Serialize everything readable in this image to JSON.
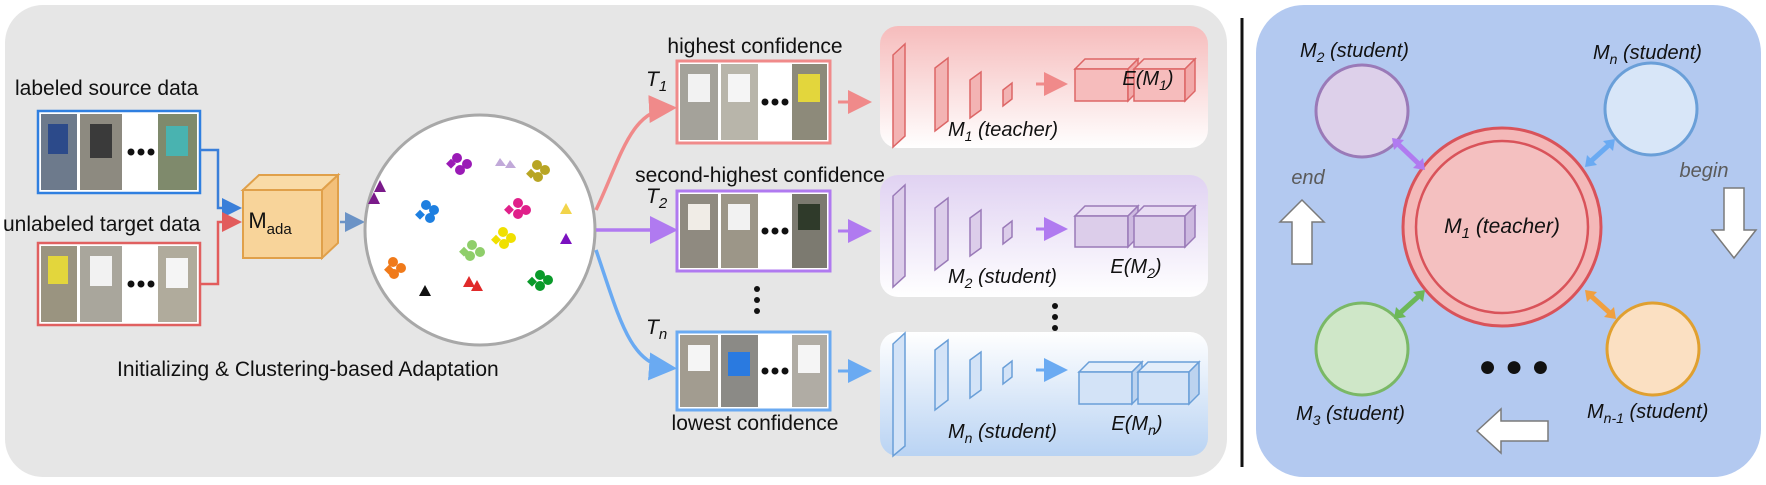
{
  "left_panel": {
    "source_label": "labeled source data",
    "target_label": "unlabeled target data",
    "model_ada": {
      "main": "M",
      "sub": "ada"
    },
    "caption": "Initializing & Clustering-based Adaptation",
    "ellipsis": "•••"
  },
  "branches": {
    "top": {
      "tier_label": "highest confidence",
      "t_main": "T",
      "t_sub": "1",
      "model_main": "M",
      "model_sub": "1",
      "model_role": " (teacher)",
      "emb_pre": "E(M",
      "emb_sub": "1",
      "emb_post": ")"
    },
    "middle": {
      "tier_label": "second-highest confidence",
      "t_main": "T",
      "t_sub": "2",
      "model_main": "M",
      "model_sub": "2",
      "model_role": " (student)",
      "emb_pre": "E(M",
      "emb_sub": "2",
      "emb_post": ")"
    },
    "bottom": {
      "tier_label": "lowest confidence",
      "t_main": "T",
      "t_sub": "n",
      "model_main": "M",
      "model_sub": "n",
      "model_role": " (student)",
      "emb_pre": "E(M",
      "emb_sub": "n",
      "emb_post": ")"
    }
  },
  "right_panel": {
    "teacher": {
      "main": "M",
      "sub": "1",
      "role": " (teacher)"
    },
    "m2": {
      "main": "M",
      "sub": "2",
      "role": " (student)"
    },
    "mn": {
      "main": "M",
      "sub": "n",
      "role": " (student)"
    },
    "m3": {
      "main": "M",
      "sub": "3",
      "role": " (student)"
    },
    "mn1": {
      "main": "M",
      "sub": "n-1",
      "role": " (student)"
    },
    "end_label": "end",
    "begin_label": "begin",
    "dots": "● ● ●"
  },
  "colors": {
    "panel_gray": "#e6e6e6",
    "panel_blue": "#b3c9f0",
    "red": "#f08a8a",
    "purple": "#b07af0",
    "blue": "#6aaaf2",
    "orange_block": "#f8d49a",
    "teacher_fill": "#f4b8b8",
    "m2_fill": "#ddd0ea",
    "mn_fill": "#d8e6f8",
    "m3_fill": "#cfe7c8",
    "mn1_fill": "#fbe0c2"
  },
  "icons": [
    "person-crop-icon",
    "cluster-point-icon",
    "cnn-block-icon",
    "embedding-block-icon",
    "double-arrow-icon",
    "hollow-arrow-icon"
  ]
}
